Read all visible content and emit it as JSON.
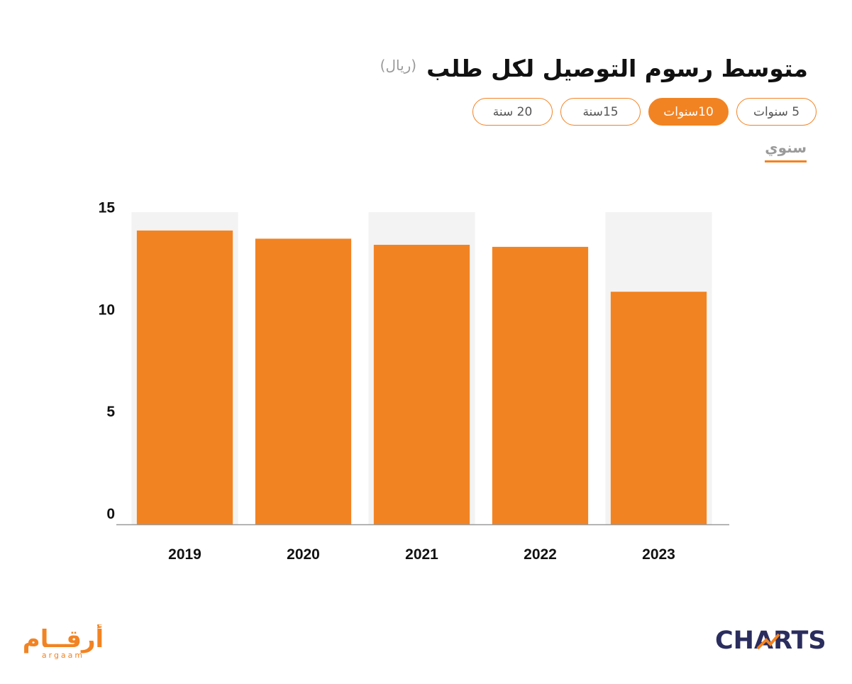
{
  "header": {
    "title": "متوسط رسوم التوصيل لكل طلب",
    "unit": "(ريال)"
  },
  "range_buttons": [
    {
      "label": "5 سنوات",
      "active": false
    },
    {
      "label": "10سنوات",
      "active": true
    },
    {
      "label": "15سنة",
      "active": false
    },
    {
      "label": "20 سنة",
      "active": false
    }
  ],
  "frequency": {
    "label": "سنوي"
  },
  "colors": {
    "accent": "#f28322",
    "bar": "#f28322",
    "band": "#f3f3f3",
    "axis": "#9a9a9a",
    "text": "#111111",
    "brand_dark": "#2b2d5e"
  },
  "chart_data": {
    "type": "bar",
    "categories": [
      "2019",
      "2020",
      "2021",
      "2022",
      "2023"
    ],
    "values": [
      14.4,
      14.0,
      13.7,
      13.6,
      11.4
    ],
    "ylim": [
      0,
      15.3
    ],
    "yticks": [
      0,
      5,
      10,
      15
    ],
    "title": "متوسط رسوم التوصيل لكل طلب",
    "ylabel": "(ريال)",
    "xlabel": "",
    "grid": false,
    "alternating_bands": true
  },
  "branding": {
    "left_logo_arabic": "أرقــام",
    "left_logo_latin": "argaam",
    "right_logo": "CHARTS"
  }
}
